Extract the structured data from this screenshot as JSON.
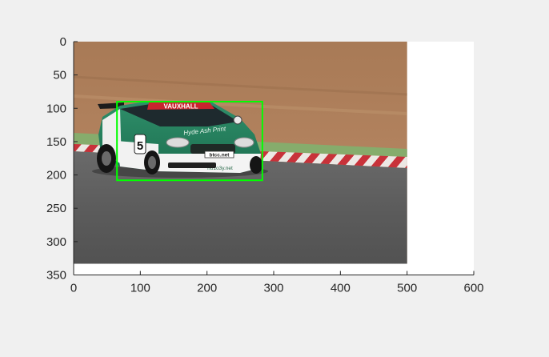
{
  "figure": {
    "background_color": "#f0f0f0",
    "axes_color": "#262626",
    "axes_background": "#ffffff"
  },
  "axes": {
    "xlim": [
      0,
      600
    ],
    "ylim": [
      0,
      350
    ],
    "y_direction": "reverse",
    "box": "off",
    "x_ticks": [
      0,
      100,
      200,
      300,
      400,
      500,
      600
    ],
    "y_ticks": [
      0,
      50,
      100,
      150,
      200,
      250,
      300,
      350
    ],
    "x_tick_labels": [
      "0",
      "100",
      "200",
      "300",
      "400",
      "500",
      "600"
    ],
    "y_tick_labels": [
      "0",
      "50",
      "100",
      "150",
      "200",
      "250",
      "300",
      "350"
    ]
  },
  "image": {
    "width": 500,
    "height": 333,
    "subject": "racing car on track"
  },
  "car": {
    "sponsor_banner": "VAUXHALL",
    "number": "5",
    "hood_text": "Hyde Ash Print",
    "plate_text": "btcc.net",
    "bumper_text": "ho1o3y.net"
  },
  "detection_box": {
    "x": 65,
    "y": 90,
    "width": 218,
    "height": 118,
    "color": "#00ff00"
  }
}
